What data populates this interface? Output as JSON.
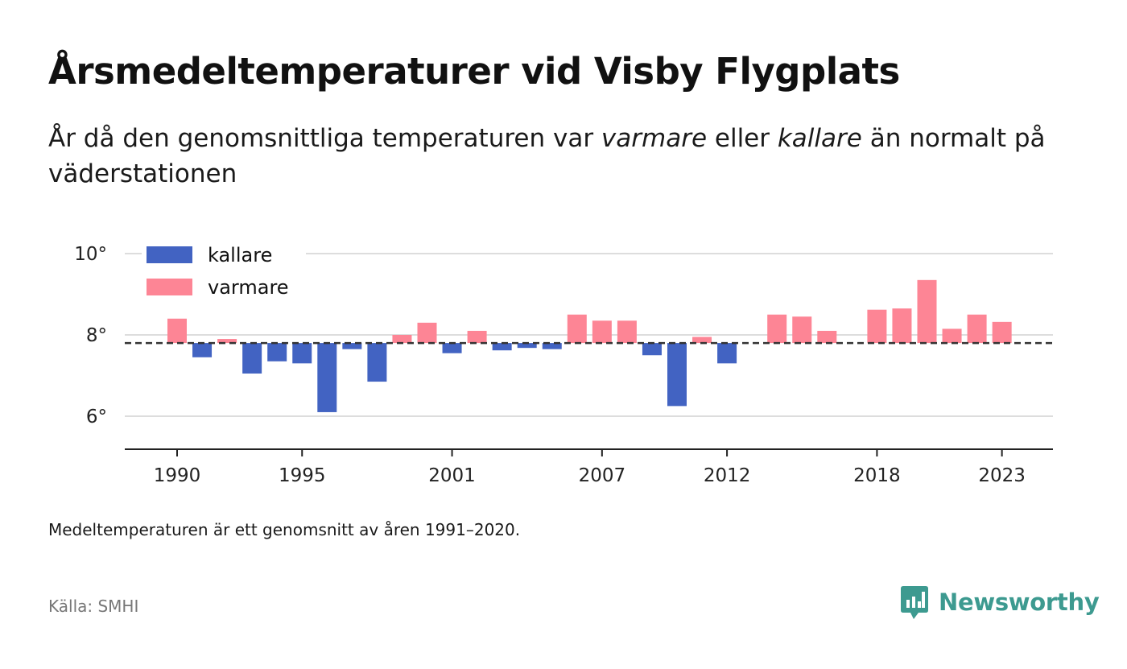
{
  "header": {
    "title": "Årsmedeltemperaturer vid Visby Flygplats",
    "subtitle_part1": "År då den genomsnittliga temperaturen var ",
    "subtitle_em1": "varmare",
    "subtitle_part2": " eller ",
    "subtitle_em2": "kallare",
    "subtitle_part3": " än normalt på väderstationen"
  },
  "footer": {
    "note": "Medeltemperaturen är ett genomsnitt av åren 1991–2020.",
    "source": "Källa: SMHI",
    "brand": "Newsworthy"
  },
  "chart_data": {
    "type": "bar",
    "baseline": 7.8,
    "ylim": [
      5.2,
      10.4
    ],
    "yticks": [
      {
        "value": 6,
        "label": "6°"
      },
      {
        "value": 8,
        "label": "8°"
      },
      {
        "value": 10,
        "label": "10°"
      }
    ],
    "xticks": [
      {
        "year": 1990,
        "label": "1990"
      },
      {
        "year": 1995,
        "label": "1995"
      },
      {
        "year": 2001,
        "label": "2001"
      },
      {
        "year": 2007,
        "label": "2007"
      },
      {
        "year": 2012,
        "label": "2012"
      },
      {
        "year": 2018,
        "label": "2018"
      },
      {
        "year": 2023,
        "label": "2023"
      }
    ],
    "grid": true,
    "legend_position": "top-left",
    "series": [
      {
        "name": "kallare",
        "color": "#4263c2"
      },
      {
        "name": "varmare",
        "color": "#fd8595"
      }
    ],
    "x": [
      1990,
      1991,
      1992,
      1993,
      1994,
      1995,
      1996,
      1997,
      1998,
      1999,
      2000,
      2001,
      2002,
      2003,
      2004,
      2005,
      2006,
      2007,
      2008,
      2009,
      2010,
      2011,
      2012,
      2013,
      2014,
      2015,
      2016,
      2017,
      2018,
      2019,
      2020,
      2021,
      2022,
      2023
    ],
    "values": [
      8.4,
      7.45,
      7.9,
      7.05,
      7.35,
      7.3,
      6.1,
      7.65,
      6.85,
      8.0,
      8.3,
      7.55,
      8.1,
      7.62,
      7.68,
      7.65,
      8.5,
      8.35,
      8.35,
      7.5,
      6.25,
      7.95,
      7.3,
      7.8,
      8.5,
      8.45,
      8.1,
      7.8,
      8.62,
      8.65,
      9.35,
      8.15,
      8.5,
      8.32
    ]
  }
}
